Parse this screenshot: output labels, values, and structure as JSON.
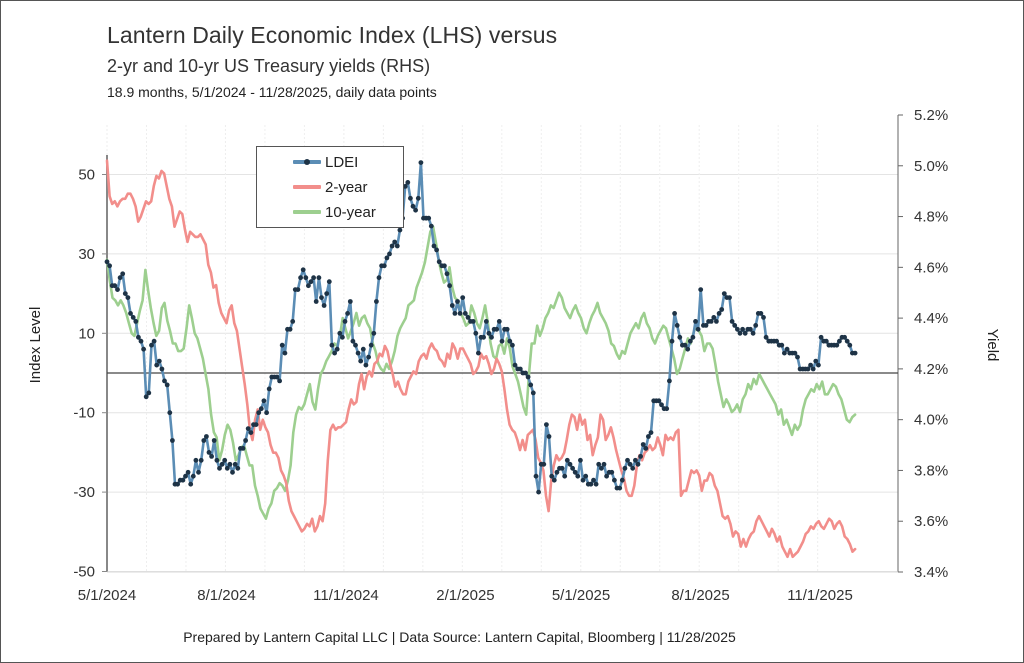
{
  "chart_data": {
    "type": "line",
    "title": "Lantern Daily Economic Index (LHS) versus",
    "subtitle": "2-yr and 10-yr US Treasury yields (RHS)",
    "subtitle2": "18.9 months, 5/1/2024 - 11/28/2025, daily data points",
    "footer": "Prepared by Lantern Capital LLC | Data Source: Lantern Capital, Bloomberg | 11/28/2025",
    "ylabel_left": "Index Level",
    "ylabel_right": "Yield",
    "ylim_left": [
      -50,
      65
    ],
    "ylim_right": [
      3.4,
      5.2
    ],
    "left_ticks": [
      "50",
      "30",
      "10",
      "-10",
      "-30",
      "-50"
    ],
    "left_tick_values": [
      50,
      30,
      10,
      -10,
      -30,
      -50
    ],
    "right_ticks": [
      "5.2%",
      "5.0%",
      "4.8%",
      "4.6%",
      "4.4%",
      "4.2%",
      "4.0%",
      "3.8%",
      "3.6%",
      "3.4%"
    ],
    "right_tick_values": [
      5.2,
      5.0,
      4.8,
      4.6,
      4.4,
      4.2,
      4.0,
      3.8,
      3.6,
      3.4
    ],
    "x_ticks": [
      "5/1/2024",
      "8/1/2024",
      "11/1/2024",
      "2/1/2025",
      "5/1/2025",
      "8/1/2025",
      "11/1/2025"
    ],
    "x_tick_days": [
      0,
      92,
      184,
      276,
      365,
      457,
      549
    ],
    "x_range_days": [
      0,
      576
    ],
    "zero_line": 0,
    "grid": true,
    "legend_position": "top-left",
    "legend": [
      "LDEI",
      "2-year",
      "10-year"
    ],
    "colors": {
      "ldei_line": "#5b8db5",
      "ldei_marker": "#1e3346",
      "two_year": "#f28e8b",
      "ten_year": "#9dcf8f"
    },
    "x_step_days": 4,
    "series": [
      {
        "name": "LDEI",
        "axis": "left",
        "values": [
          28,
          27,
          22,
          22,
          21,
          24,
          25,
          20,
          19,
          15,
          14,
          13,
          9,
          8,
          6,
          -6,
          -5,
          7,
          8,
          2,
          3,
          1,
          -2,
          -3,
          -10,
          -17,
          -28,
          -28,
          -27,
          -27,
          -26,
          -25,
          -28,
          -26,
          -22,
          -25,
          -22,
          -17,
          -16,
          -20,
          -21,
          -17,
          -22,
          -24,
          -23,
          -22,
          -24,
          -23,
          -25,
          -23,
          -24,
          -19,
          -19,
          -17,
          -14,
          -15,
          -13,
          -13,
          -10,
          -9,
          -7,
          -10,
          -4,
          -1,
          -1,
          -1,
          -2,
          7,
          5,
          11,
          11,
          13,
          21,
          21,
          24,
          26,
          24,
          22,
          23,
          24,
          18,
          24,
          19,
          17,
          20,
          23,
          7,
          5,
          6,
          10,
          9,
          13,
          15,
          18,
          8,
          7,
          5,
          3,
          6,
          2,
          4,
          7,
          10,
          18,
          24,
          27,
          27,
          29,
          30,
          32,
          33,
          32,
          36,
          39,
          47,
          48,
          44,
          42,
          41,
          44,
          53,
          39,
          39,
          39,
          37,
          32,
          31,
          28,
          27,
          27,
          25,
          22,
          17,
          15,
          18,
          15,
          19,
          15,
          14,
          13,
          13,
          10,
          5,
          9,
          9,
          13,
          10,
          9,
          11,
          11,
          13,
          8,
          11,
          11,
          8,
          7,
          2,
          1,
          1,
          0,
          0,
          -1,
          -3,
          -5,
          -26,
          -30,
          -23,
          -23,
          -13,
          -16,
          -26,
          -27,
          -25,
          -24,
          -24,
          -26,
          -22,
          -23,
          -24,
          -25,
          -26,
          -22,
          -27,
          -26,
          -28,
          -28,
          -27,
          -28,
          -23,
          -24,
          -23,
          -26,
          -25,
          -25,
          -27,
          -29,
          -29,
          -27,
          -24,
          -22,
          -23,
          -24,
          -22,
          -23,
          -21,
          -18,
          -19,
          -16,
          -15,
          -7,
          -7,
          -7,
          -8,
          -9,
          -9,
          -2,
          8,
          15,
          12,
          9,
          7,
          7,
          6,
          8,
          9,
          13,
          11,
          21,
          12,
          12,
          13,
          13,
          14,
          13,
          15,
          16,
          20,
          19,
          19,
          13,
          12,
          11,
          10,
          11,
          10,
          11,
          11,
          10,
          12,
          15,
          15,
          14,
          9,
          8,
          8,
          8,
          8,
          7,
          7,
          5,
          6,
          5,
          5,
          5,
          4,
          1,
          1,
          1,
          1,
          2,
          1,
          3,
          2,
          9,
          8,
          8,
          7,
          7,
          7,
          7,
          8,
          9,
          9,
          8,
          7,
          5,
          5
        ]
      },
      {
        "name": "2-year",
        "axis": "right",
        "values": [
          5.02,
          4.88,
          4.85,
          4.86,
          4.84,
          4.86,
          4.87,
          4.87,
          4.89,
          4.89,
          4.87,
          4.84,
          4.78,
          4.8,
          4.83,
          4.86,
          4.85,
          4.86,
          4.92,
          4.96,
          4.95,
          4.98,
          4.97,
          4.92,
          4.87,
          4.84,
          4.76,
          4.79,
          4.82,
          4.81,
          4.75,
          4.7,
          4.74,
          4.73,
          4.72,
          4.72,
          4.73,
          4.71,
          4.69,
          4.61,
          4.58,
          4.52,
          4.53,
          4.46,
          4.42,
          4.4,
          4.38,
          4.43,
          4.45,
          4.38,
          4.35,
          4.28,
          4.21,
          4.14,
          4.06,
          3.96,
          3.92,
          4.0,
          4.04,
          3.96,
          4.0,
          3.97,
          3.95,
          3.9,
          3.87,
          3.87,
          3.85,
          3.8,
          3.78,
          3.75,
          3.68,
          3.64,
          3.62,
          3.6,
          3.58,
          3.56,
          3.57,
          3.59,
          3.58,
          3.61,
          3.56,
          3.58,
          3.62,
          3.6,
          3.67,
          3.84,
          3.96,
          3.98,
          3.96,
          3.97,
          3.97,
          3.98,
          3.99,
          4.04,
          4.08,
          4.06,
          4.07,
          4.14,
          4.18,
          4.12,
          4.17,
          4.19,
          4.17,
          4.22,
          4.23,
          4.26,
          4.25,
          4.29,
          4.27,
          4.22,
          4.18,
          4.13,
          4.15,
          4.12,
          4.1,
          4.1,
          4.15,
          4.17,
          4.19,
          4.18,
          4.23,
          4.25,
          4.26,
          4.24,
          4.28,
          4.3,
          4.28,
          4.27,
          4.24,
          4.23,
          4.21,
          4.26,
          4.24,
          4.3,
          4.28,
          4.24,
          4.28,
          4.28,
          4.26,
          4.24,
          4.22,
          4.18,
          4.19,
          4.21,
          4.26,
          4.24,
          4.25,
          4.22,
          4.18,
          4.2,
          4.24,
          4.22,
          4.19,
          4.12,
          4.04,
          3.98,
          3.96,
          3.95,
          3.92,
          3.88,
          3.92,
          3.88,
          3.94,
          3.95,
          3.96,
          3.92,
          3.85,
          3.83,
          3.8,
          3.7,
          3.64,
          3.76,
          3.82,
          3.86,
          3.84,
          3.85,
          3.87,
          3.92,
          3.98,
          4.02,
          4.01,
          3.96,
          4.02,
          3.98,
          4.0,
          3.92,
          3.94,
          3.86,
          3.9,
          3.93,
          4.02,
          4.0,
          3.92,
          3.94,
          3.97,
          3.93,
          3.88,
          3.84,
          3.8,
          3.77,
          3.72,
          3.7,
          3.7,
          3.74,
          3.82,
          3.86,
          3.84,
          3.87,
          3.88,
          3.9,
          3.88,
          3.89,
          3.93,
          3.9,
          3.86,
          3.94,
          3.92,
          3.93,
          3.92,
          3.95,
          3.96,
          3.7,
          3.72,
          3.72,
          3.76,
          3.8,
          3.79,
          3.8,
          3.78,
          3.72,
          3.76,
          3.76,
          3.79,
          3.78,
          3.74,
          3.72,
          3.67,
          3.62,
          3.61,
          3.62,
          3.59,
          3.54,
          3.56,
          3.55,
          3.5,
          3.53,
          3.5,
          3.53,
          3.55,
          3.56,
          3.6,
          3.62,
          3.6,
          3.58,
          3.56,
          3.54,
          3.57,
          3.55,
          3.52,
          3.54,
          3.5,
          3.48,
          3.46,
          3.49,
          3.46,
          3.47,
          3.48,
          3.5,
          3.52,
          3.55,
          3.56,
          3.58,
          3.57,
          3.59,
          3.6,
          3.58,
          3.57,
          3.59,
          3.61,
          3.6,
          3.57,
          3.59,
          3.6,
          3.58,
          3.54,
          3.53,
          3.51,
          3.48,
          3.49
        ]
      },
      {
        "name": "10-year",
        "axis": "right",
        "values": [
          4.63,
          4.55,
          4.48,
          4.47,
          4.45,
          4.47,
          4.45,
          4.42,
          4.38,
          4.34,
          4.33,
          4.38,
          4.43,
          4.47,
          4.59,
          4.51,
          4.44,
          4.38,
          4.33,
          4.35,
          4.44,
          4.46,
          4.39,
          4.35,
          4.3,
          4.3,
          4.27,
          4.27,
          4.28,
          4.36,
          4.45,
          4.4,
          4.34,
          4.32,
          4.28,
          4.24,
          4.18,
          4.12,
          4.02,
          3.95,
          3.93,
          3.84,
          3.88,
          3.94,
          3.98,
          3.96,
          3.91,
          3.84,
          3.86,
          3.89,
          3.9,
          3.86,
          3.82,
          3.82,
          3.74,
          3.7,
          3.65,
          3.63,
          3.61,
          3.65,
          3.67,
          3.72,
          3.73,
          3.75,
          3.74,
          3.72,
          3.76,
          3.82,
          3.95,
          4.02,
          4.05,
          4.04,
          4.06,
          4.1,
          4.14,
          4.07,
          4.04,
          4.12,
          4.18,
          4.2,
          4.23,
          4.25,
          4.27,
          4.3,
          4.29,
          4.33,
          4.4,
          4.36,
          4.32,
          4.35,
          4.38,
          4.42,
          4.37,
          4.4,
          4.41,
          4.38,
          4.36,
          4.3,
          4.27,
          4.22,
          4.2,
          4.19,
          4.22,
          4.2,
          4.23,
          4.27,
          4.33,
          4.36,
          4.38,
          4.4,
          4.45,
          4.46,
          4.47,
          4.52,
          4.55,
          4.58,
          4.62,
          4.68,
          4.74,
          4.76,
          4.7,
          4.63,
          4.58,
          4.54,
          4.55,
          4.6,
          4.52,
          4.48,
          4.47,
          4.42,
          4.4,
          4.37,
          4.38,
          4.45,
          4.42,
          4.38,
          4.36,
          4.4,
          4.45,
          4.38,
          4.3,
          4.25,
          4.24,
          4.29,
          4.3,
          4.26,
          4.32,
          4.28,
          4.21,
          4.18,
          4.15,
          4.1,
          4.05,
          4.02,
          4.18,
          4.3,
          4.3,
          4.37,
          4.33,
          4.36,
          4.4,
          4.42,
          4.45,
          4.44,
          4.47,
          4.5,
          4.48,
          4.44,
          4.42,
          4.4,
          4.43,
          4.45,
          4.42,
          4.4,
          4.36,
          4.34,
          4.38,
          4.41,
          4.43,
          4.46,
          4.42,
          4.4,
          4.38,
          4.35,
          4.3,
          4.29,
          4.26,
          4.24,
          4.27,
          4.26,
          4.3,
          4.34,
          4.36,
          4.38,
          4.36,
          4.4,
          4.42,
          4.38,
          4.36,
          4.32,
          4.3,
          4.33,
          4.35,
          4.37,
          4.36,
          4.32,
          4.28,
          4.24,
          4.18,
          4.2,
          4.24,
          4.28,
          4.32,
          4.3,
          4.34,
          4.37,
          4.35,
          4.33,
          4.27,
          4.3,
          4.3,
          4.28,
          4.22,
          4.15,
          4.1,
          4.05,
          4.08,
          4.06,
          4.03,
          4.04,
          4.06,
          4.03,
          4.08,
          4.1,
          4.14,
          4.12,
          4.16,
          4.14,
          4.18,
          4.16,
          4.14,
          4.12,
          4.1,
          4.08,
          4.06,
          4.02,
          4.04,
          3.98,
          4.0,
          3.97,
          3.94,
          3.98,
          3.96,
          3.98,
          4.04,
          4.08,
          4.1,
          4.12,
          4.11,
          4.14,
          4.12,
          4.15,
          4.1,
          4.1,
          4.12,
          4.14,
          4.13,
          4.1,
          4.08,
          4.04,
          4.0,
          3.99,
          4.01,
          4.02
        ]
      }
    ]
  }
}
